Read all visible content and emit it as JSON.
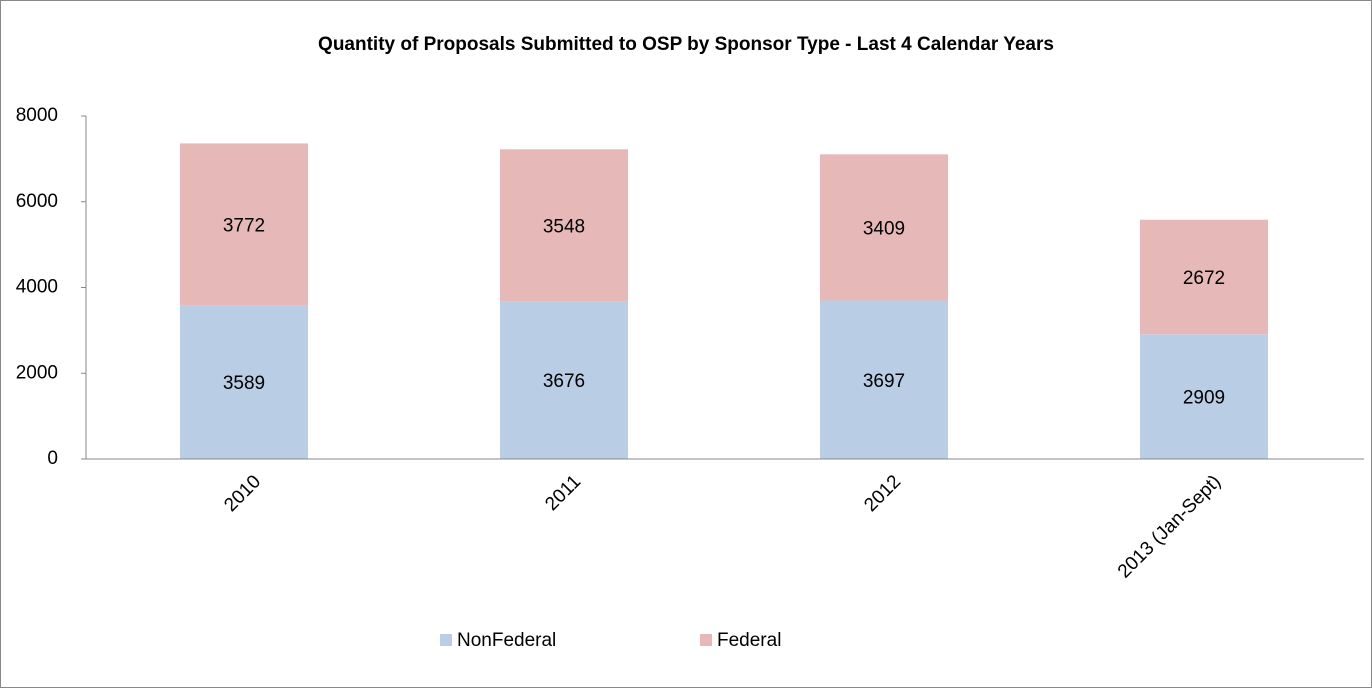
{
  "chart_data": {
    "type": "stacked_bar",
    "title": "Quantity of Proposals Submitted to OSP by Sponsor Type - Last 4 Calendar Years",
    "categories": [
      "2010",
      "2011",
      "2012",
      "2013 (Jan-Sept)"
    ],
    "series": [
      {
        "name": "NonFederal",
        "color": "#b9cde5",
        "values": [
          3589,
          3676,
          3697,
          2909
        ]
      },
      {
        "name": "Federal",
        "color": "#e6b9b8",
        "values": [
          3772,
          3548,
          3409,
          2672
        ]
      }
    ],
    "ylim": [
      0,
      8000
    ],
    "yticks": [
      0,
      2000,
      4000,
      6000,
      8000
    ],
    "grid": false,
    "legend": "bottom"
  }
}
